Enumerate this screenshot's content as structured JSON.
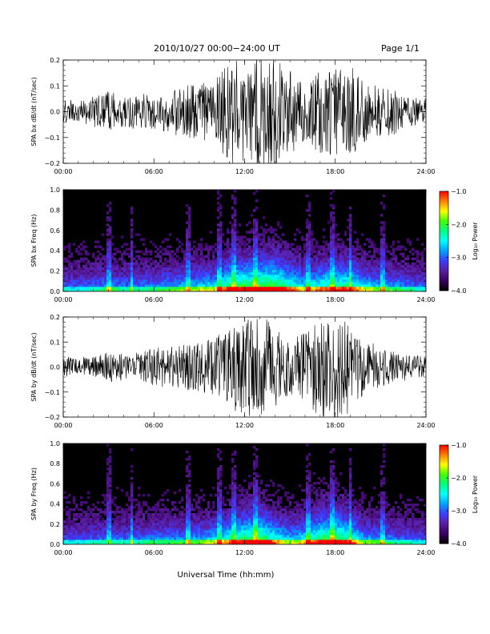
{
  "header": {
    "date_range": "2010/10/27  00:00−24:00 UT",
    "page": "Page 1/1"
  },
  "x_axis": {
    "label": "Universal Time (hh:mm)",
    "ticks": [
      "00:00",
      "06:00",
      "12:00",
      "18:00",
      "24:00"
    ],
    "range_hours": [
      0,
      24
    ]
  },
  "colorbar": {
    "label": "Log₁₀ Power",
    "ticks": [
      "−1.0",
      "−2.0",
      "−3.0",
      "−4.0"
    ],
    "range": [
      -4.0,
      -1.0
    ],
    "colormap": [
      "#000000",
      "#3a0060",
      "#5a1ea0",
      "#3c3cff",
      "#00a0ff",
      "#00ffff",
      "#00ff80",
      "#40ff00",
      "#ffff00",
      "#ff8000",
      "#ff0000"
    ]
  },
  "chart_data": [
    {
      "type": "line",
      "ylabel": "SPA bx dB/dt (nT/sec)",
      "ylim": [
        -0.2,
        0.2
      ],
      "yticks": [
        "0.2",
        "0.1",
        "0.0",
        "−0.1",
        "−0.2"
      ],
      "yticks_values": [
        0.2,
        0.1,
        0.0,
        -0.1,
        -0.2
      ],
      "x_hours": [
        0,
        1,
        2,
        3,
        4,
        5,
        6,
        7,
        8,
        9,
        10,
        11,
        12,
        13,
        14,
        15,
        16,
        17,
        18,
        19,
        20,
        21,
        22,
        23,
        24
      ],
      "envelope": [
        0.05,
        0.04,
        0.06,
        0.08,
        0.06,
        0.07,
        0.07,
        0.09,
        0.1,
        0.12,
        0.12,
        0.2,
        0.2,
        0.22,
        0.22,
        0.17,
        0.12,
        0.16,
        0.18,
        0.18,
        0.12,
        0.1,
        0.09,
        0.06,
        0.05
      ],
      "color": "#000000"
    },
    {
      "type": "heatmap",
      "ylabel": "SPA bx Freq (Hz)",
      "ylim": [
        0.0,
        1.0
      ],
      "yticks": [
        "1.0",
        "0.8",
        "0.6",
        "0.4",
        "0.2",
        "0.0"
      ],
      "yticks_values": [
        1.0,
        0.8,
        0.6,
        0.4,
        0.2,
        0.0
      ],
      "zlim": [
        -4.0,
        -1.0
      ]
    },
    {
      "type": "line",
      "ylabel": "SPA by dB/dt (nT/sec)",
      "ylim": [
        -0.2,
        0.2
      ],
      "yticks": [
        "0.2",
        "0.1",
        "0.0",
        "−0.1",
        "−0.2"
      ],
      "yticks_values": [
        0.2,
        0.1,
        0.0,
        -0.1,
        -0.2
      ],
      "x_hours": [
        0,
        1,
        2,
        3,
        4,
        5,
        6,
        7,
        8,
        9,
        10,
        11,
        12,
        13,
        14,
        15,
        16,
        17,
        18,
        19,
        20,
        21,
        22,
        23,
        24
      ],
      "envelope": [
        0.04,
        0.04,
        0.05,
        0.06,
        0.06,
        0.06,
        0.08,
        0.08,
        0.09,
        0.1,
        0.12,
        0.16,
        0.2,
        0.22,
        0.16,
        0.11,
        0.14,
        0.2,
        0.22,
        0.18,
        0.1,
        0.09,
        0.06,
        0.05,
        0.04
      ],
      "color": "#000000"
    },
    {
      "type": "heatmap",
      "ylabel": "SPA by Freq (Hz)",
      "ylim": [
        0.0,
        1.0
      ],
      "yticks": [
        "1.0",
        "0.8",
        "0.6",
        "0.4",
        "0.2",
        "0.0"
      ],
      "yticks_values": [
        1.0,
        0.8,
        0.6,
        0.4,
        0.2,
        0.0
      ],
      "zlim": [
        -4.0,
        -1.0
      ]
    }
  ]
}
